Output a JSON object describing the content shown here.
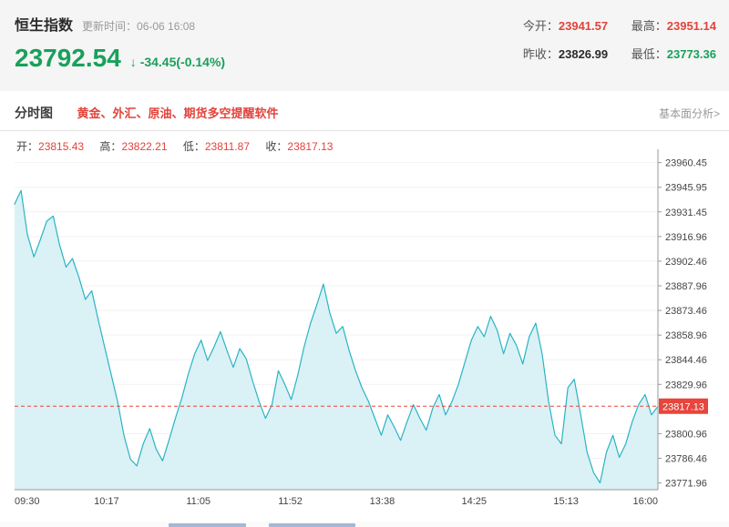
{
  "header": {
    "index_name": "恒生指数",
    "update_time": "更新时间：06-06 16:08",
    "price": "23792.54",
    "change_arrow": "↓",
    "change_text": "-34.45(-0.14%)",
    "stats": [
      {
        "label": "今开：",
        "value": "23941.57"
      },
      {
        "label": "最高：",
        "value": "23951.14"
      },
      {
        "label": "昨收：",
        "value": "23826.99"
      },
      {
        "label": "最低：",
        "value": "23773.36"
      }
    ]
  },
  "tabbar": {
    "tab_label": "分时图",
    "promo_label": "黄金、外汇、原油、期货多空提醒软件",
    "right_link_label": "基本面分析>"
  },
  "ohlc": {
    "open_label": "开：",
    "open": "23815.43",
    "high_label": "高：",
    "high": "23822.21",
    "low_label": "低：",
    "low": "23811.87",
    "close_label": "收：",
    "close": "23817.13"
  },
  "colors": {
    "up_red": "#e2433b",
    "down_green": "#19a05b",
    "last_price_box": "#e8453c"
  },
  "chart_data": {
    "type": "area",
    "title": "恒生指数分时图",
    "xlabel": "",
    "ylabel": "",
    "x_ticks": [
      "09:30",
      "10:17",
      "11:05",
      "11:52",
      "13:38",
      "14:25",
      "15:13",
      "16:00"
    ],
    "y_ticks": [
      23960.45,
      23945.95,
      23931.45,
      23916.96,
      23902.46,
      23887.96,
      23873.46,
      23858.96,
      23844.46,
      23829.96,
      23800.96,
      23786.46,
      23771.96
    ],
    "ylim": [
      23768,
      23964
    ],
    "last_price": 23817.13,
    "last_price_label": "23817.13",
    "line_color": "#2ab4c4",
    "fill_color": "#daf1f5",
    "grid": false,
    "legend": "none",
    "values": [
      23936,
      23944,
      23918,
      23905,
      23915,
      23926,
      23929,
      23912,
      23899,
      23904,
      23893,
      23880,
      23885,
      23868,
      23852,
      23836,
      23820,
      23800,
      23786,
      23782,
      23795,
      23804,
      23792,
      23785,
      23797,
      23810,
      23822,
      23836,
      23848,
      23856,
      23844,
      23852,
      23861,
      23850,
      23840,
      23851,
      23845,
      23832,
      23820,
      23810,
      23818,
      23838,
      23830,
      23821,
      23835,
      23852,
      23866,
      23877,
      23889,
      23872,
      23860,
      23864,
      23850,
      23838,
      23828,
      23820,
      23810,
      23800,
      23812,
      23805,
      23797,
      23808,
      23818,
      23810,
      23803,
      23816,
      23824,
      23812,
      23820,
      23830,
      23843,
      23856,
      23864,
      23858,
      23870,
      23862,
      23848,
      23860,
      23853,
      23842,
      23858,
      23866,
      23848,
      23820,
      23800,
      23795,
      23828,
      23833,
      23812,
      23790,
      23778,
      23772,
      23790,
      23800,
      23787,
      23795,
      23808,
      23818,
      23824,
      23812,
      23817
    ]
  }
}
